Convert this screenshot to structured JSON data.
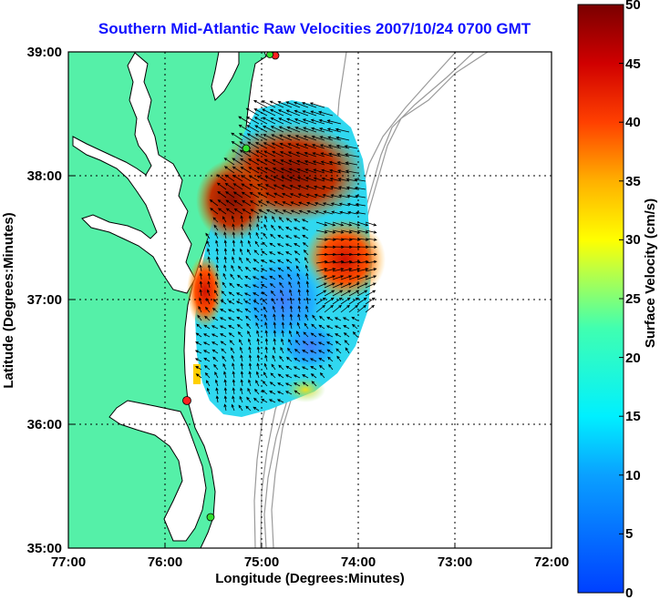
{
  "title": "Southern Mid-Atlantic Raw Velocities 2007/10/24 0700 GMT",
  "x_axis": {
    "label": "Longitude (Degrees:Minutes)",
    "ticks": [
      "77:00",
      "76:00",
      "75:00",
      "74:00",
      "73:00",
      "72:00"
    ]
  },
  "y_axis": {
    "label": "Latitude (Degrees:Minutes)",
    "ticks": [
      "39:00",
      "38:00",
      "37:00",
      "36:00",
      "35:00"
    ]
  },
  "colorbar": {
    "label": "Surface Velocity (cm/s)",
    "ticks": [
      "50",
      "45",
      "40",
      "35",
      "30",
      "25",
      "20",
      "15",
      "10",
      "5",
      "0"
    ],
    "min": 0,
    "max": 50
  },
  "colors": {
    "land": "#55f0a8",
    "water": "#ffffff",
    "title": "#1010ff",
    "bathymetry": "#9a9a9a",
    "station_red": "#ff2020",
    "station_green": "#30e030"
  },
  "chart_data": {
    "type": "heatmap",
    "x_range": [
      -77,
      -72
    ],
    "y_range": [
      35,
      39
    ],
    "grid": true,
    "stations": [
      {
        "lon": -74.85,
        "lat": 38.97,
        "color": "red"
      },
      {
        "lon": -74.9,
        "lat": 38.97,
        "color": "green"
      },
      {
        "lon": -75.15,
        "lat": 38.22,
        "color": "green"
      },
      {
        "lon": -75.72,
        "lat": 36.18,
        "color": "red"
      },
      {
        "lon": -75.47,
        "lat": 35.25,
        "color": "green"
      }
    ]
  }
}
